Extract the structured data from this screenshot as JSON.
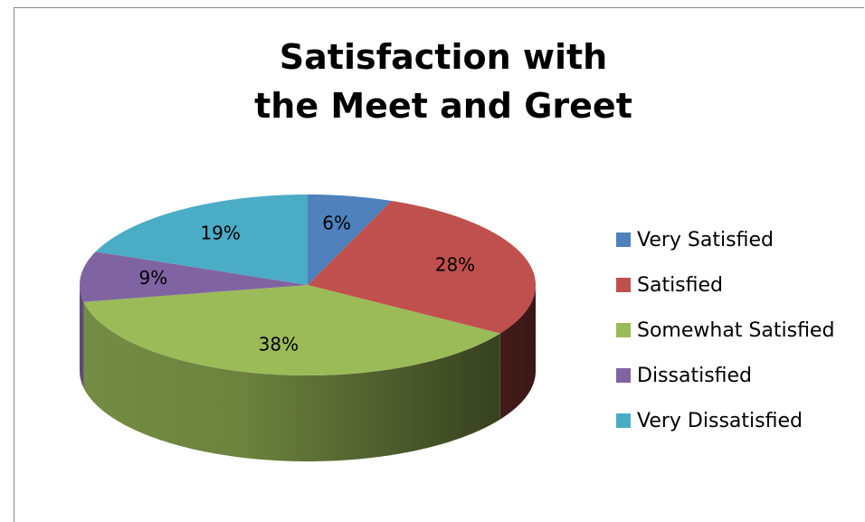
{
  "chart_data": {
    "type": "pie",
    "title": "Satisfaction with the Meet and Greet",
    "categories": [
      "Very Satisfied",
      "Satisfied",
      "Somewhat Satisfied",
      "Dissatisfied",
      "Very Dissatisfied"
    ],
    "values": [
      6,
      28,
      38,
      9,
      19
    ],
    "value_labels": [
      "6%",
      "28%",
      "38%",
      "9%",
      "19%"
    ],
    "colors": [
      "#4f81bd",
      "#c0504d",
      "#9bbb59",
      "#8064a2",
      "#4bacc6"
    ],
    "legend": "right"
  }
}
